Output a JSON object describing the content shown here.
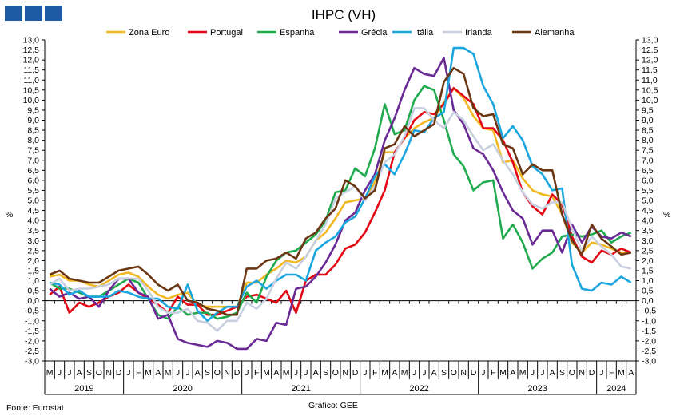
{
  "header": {
    "logo_name": "gee-logo"
  },
  "footer": {
    "source": "Fonte: Eurostat",
    "credit": "Gráfico: GEE"
  },
  "chart_data": {
    "type": "line",
    "title": "IHPC (VH)",
    "ylabel_left": "%",
    "ylabel_right": "%",
    "ylim": [
      -3.0,
      13.0
    ],
    "ystep": 0.5,
    "ytick_labels": [
      "13,0",
      "12,5",
      "12,0",
      "11,5",
      "11,0",
      "10,5",
      "10,0",
      "9,5",
      "9,0",
      "8,5",
      "8,0",
      "7,5",
      "7,0",
      "6,5",
      "6,0",
      "5,5",
      "5,0",
      "4,5",
      "4,0",
      "3,5",
      "3,0",
      "2,5",
      "2,0",
      "1,5",
      "1,0",
      "0,5",
      "0,0",
      "-0,5",
      "-1,0",
      "-1,5",
      "-2,0",
      "-2,5",
      "-3,0"
    ],
    "month_labels": [
      "M",
      "J",
      "J",
      "A",
      "S",
      "O",
      "N",
      "D",
      "J",
      "F",
      "M",
      "A",
      "M",
      "J",
      "J",
      "A",
      "S",
      "O",
      "N",
      "D",
      "J",
      "F",
      "M",
      "A",
      "M",
      "J",
      "J",
      "A",
      "S",
      "O",
      "N",
      "D",
      "J",
      "F",
      "M",
      "A",
      "M",
      "J",
      "J",
      "A",
      "S",
      "O",
      "N",
      "D",
      "J",
      "F",
      "M",
      "A",
      "M",
      "J",
      "J",
      "A",
      "S",
      "O",
      "N",
      "D",
      "J",
      "F",
      "M",
      "A"
    ],
    "years": [
      {
        "label": "2019",
        "start": 0,
        "end": 7
      },
      {
        "label": "2020",
        "start": 8,
        "end": 19
      },
      {
        "label": "2021",
        "start": 20,
        "end": 31
      },
      {
        "label": "2022",
        "start": 32,
        "end": 43
      },
      {
        "label": "2023",
        "start": 44,
        "end": 55
      },
      {
        "label": "2024",
        "start": 56,
        "end": 59
      }
    ],
    "legend_position": "top",
    "series": [
      {
        "name": "Zona Euro",
        "color": "#f2b824",
        "values": [
          1.2,
          1.3,
          1.0,
          1.0,
          0.8,
          0.7,
          1.0,
          1.3,
          1.4,
          1.2,
          0.7,
          0.3,
          0.1,
          0.3,
          0.4,
          -0.2,
          -0.3,
          -0.3,
          -0.3,
          -0.3,
          0.9,
          0.9,
          1.3,
          1.6,
          2.0,
          1.9,
          2.2,
          3.0,
          3.4,
          4.1,
          4.9,
          5.0,
          5.1,
          5.9,
          7.4,
          7.4,
          8.1,
          8.6,
          8.9,
          9.1,
          9.9,
          10.6,
          10.1,
          9.2,
          8.6,
          8.5,
          6.9,
          7.0,
          6.1,
          5.5,
          5.3,
          5.2,
          4.3,
          2.9,
          2.4,
          2.9,
          2.8,
          2.6,
          2.4,
          2.4
        ]
      },
      {
        "name": "Portugal",
        "color": "#e30613",
        "values": [
          0.3,
          0.7,
          -0.6,
          -0.1,
          -0.3,
          -0.1,
          0.2,
          0.4,
          0.8,
          0.4,
          0.1,
          -0.2,
          -0.6,
          0.2,
          -0.2,
          -0.2,
          -0.7,
          -0.7,
          -0.5,
          -0.3,
          0.2,
          0.3,
          0.1,
          -0.1,
          0.5,
          -0.6,
          1.0,
          1.3,
          1.3,
          1.8,
          2.6,
          2.8,
          3.4,
          4.4,
          5.5,
          7.4,
          8.1,
          9.0,
          9.4,
          9.3,
          9.8,
          10.6,
          10.2,
          9.8,
          8.6,
          8.6,
          8.0,
          6.9,
          5.4,
          4.7,
          4.3,
          5.3,
          4.8,
          3.2,
          2.2,
          1.9,
          2.5,
          2.3,
          2.6,
          2.4
        ]
      },
      {
        "name": "Espanha",
        "color": "#1eaa4d",
        "values": [
          0.9,
          0.6,
          0.6,
          0.4,
          0.2,
          0.2,
          0.5,
          0.8,
          1.1,
          0.9,
          0.1,
          -0.7,
          -0.9,
          -0.3,
          -0.7,
          -0.6,
          -0.6,
          -0.9,
          -0.8,
          -0.6,
          0.4,
          -0.1,
          1.2,
          2.0,
          2.4,
          2.5,
          2.9,
          3.3,
          4.0,
          5.4,
          5.5,
          6.6,
          6.2,
          7.6,
          9.8,
          8.3,
          8.5,
          10.0,
          10.7,
          10.5,
          9.0,
          7.3,
          6.7,
          5.5,
          5.9,
          6.0,
          3.1,
          3.8,
          2.9,
          1.6,
          2.1,
          2.4,
          3.2,
          3.3,
          3.2,
          3.3,
          3.5,
          2.9,
          3.2,
          3.4
        ]
      },
      {
        "name": "Grécia",
        "color": "#6a2a96",
        "values": [
          0.6,
          0.2,
          0.4,
          0.1,
          0.2,
          -0.3,
          0.5,
          1.1,
          1.1,
          0.4,
          0.2,
          -0.9,
          -0.7,
          -1.9,
          -2.1,
          -2.2,
          -2.3,
          -2.0,
          -2.1,
          -2.4,
          -2.4,
          -1.9,
          -2.0,
          -1.1,
          -1.2,
          0.6,
          0.7,
          1.2,
          1.9,
          2.8,
          4.0,
          4.4,
          5.5,
          6.3,
          8.0,
          9.1,
          10.5,
          11.6,
          11.3,
          11.2,
          12.1,
          9.5,
          8.8,
          7.6,
          7.3,
          6.5,
          5.4,
          4.5,
          4.1,
          2.8,
          3.5,
          3.5,
          2.4,
          3.8,
          2.9,
          3.7,
          3.2,
          3.1,
          3.4,
          3.2
        ]
      },
      {
        "name": "Itália",
        "color": "#1ba6e0",
        "values": [
          0.9,
          0.8,
          0.3,
          0.5,
          0.2,
          0.2,
          0.2,
          0.5,
          0.4,
          0.2,
          0.1,
          0.1,
          -0.3,
          -0.4,
          0.8,
          -0.5,
          -1.0,
          -0.6,
          -0.3,
          -0.3,
          0.7,
          1.0,
          0.6,
          1.0,
          1.3,
          1.3,
          1.0,
          2.5,
          2.9,
          3.2,
          3.9,
          4.2,
          5.1,
          6.2,
          6.8,
          6.3,
          7.3,
          8.5,
          8.4,
          9.1,
          9.4,
          12.6,
          12.6,
          12.3,
          10.7,
          9.8,
          8.1,
          8.7,
          8.0,
          6.7,
          6.3,
          5.5,
          5.6,
          1.8,
          0.6,
          0.5,
          0.9,
          0.8,
          1.2,
          0.9
        ]
      },
      {
        "name": "Irlanda",
        "color": "#c8d0e0",
        "values": [
          0.8,
          1.1,
          0.5,
          0.6,
          0.6,
          0.7,
          0.8,
          1.1,
          1.1,
          1.1,
          0.5,
          -0.3,
          -0.6,
          -0.6,
          -0.4,
          -1.0,
          -1.1,
          -1.5,
          -1.0,
          -1.0,
          -0.1,
          -0.4,
          0.1,
          1.1,
          1.9,
          1.6,
          2.2,
          3.0,
          3.8,
          5.1,
          5.4,
          5.7,
          5.0,
          5.7,
          6.9,
          7.3,
          8.2,
          9.6,
          9.6,
          9.0,
          8.6,
          9.4,
          9.0,
          8.2,
          7.5,
          7.8,
          7.0,
          6.3,
          5.4,
          4.8,
          4.6,
          4.9,
          4.9,
          3.6,
          2.5,
          3.2,
          2.7,
          2.3,
          1.7,
          1.6
        ]
      },
      {
        "name": "Alemanha",
        "color": "#6b3612",
        "values": [
          1.3,
          1.5,
          1.1,
          1.0,
          0.9,
          0.9,
          1.2,
          1.5,
          1.6,
          1.7,
          1.3,
          0.8,
          0.5,
          0.8,
          0.0,
          -0.1,
          -0.4,
          -0.5,
          -0.7,
          -0.7,
          1.6,
          1.6,
          2.0,
          2.1,
          2.4,
          2.1,
          3.1,
          3.4,
          4.1,
          4.6,
          6.0,
          5.7,
          5.1,
          5.5,
          7.6,
          7.8,
          8.7,
          8.2,
          8.5,
          8.8,
          10.9,
          11.6,
          11.3,
          9.6,
          9.2,
          9.3,
          7.8,
          7.6,
          6.3,
          6.8,
          6.5,
          6.5,
          4.3,
          3.0,
          2.3,
          3.8,
          3.1,
          2.7,
          2.3,
          2.4
        ]
      }
    ]
  }
}
